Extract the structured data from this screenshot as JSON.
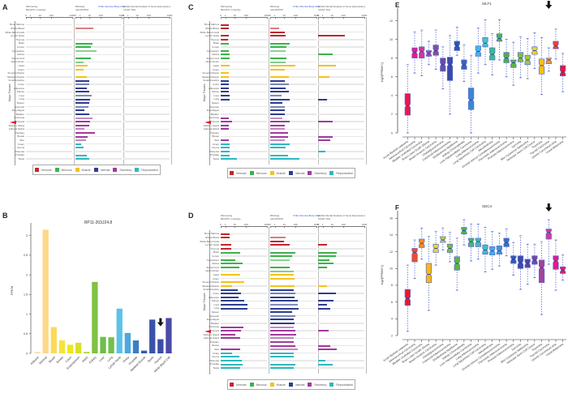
{
  "panels": {
    "A": {
      "letter": "A"
    },
    "B": {
      "letter": "B"
    },
    "C": {
      "letter": "C"
    },
    "D": {
      "letter": "D"
    },
    "E": {
      "letter": "E"
    },
    "F": {
      "letter": "F"
    }
  },
  "tissue_panels": {
    "y_label": "Major Tissues",
    "col_headers": [
      {
        "line1": "Microarray",
        "line2": "BioGPS  • Intensity",
        "blue": ""
      },
      {
        "line1": "RNAseq",
        "line2": "rpkm/FPKM",
        "blue": "GTEx  Illumina Body Map"
      },
      {
        "line1": "SAGE  (Serial Analysis of Gene Expression)",
        "line2": "CGAP  TAG",
        "blue": ""
      }
    ],
    "ticks_col1": [
      "0",
      "1",
      "10",
      "100",
      "1000"
    ],
    "ticks_col2": [
      "0",
      "1",
      "10",
      "100",
      "1000"
    ],
    "ticks_col3": [
      "0",
      "1",
      "10",
      "100",
      "1000"
    ],
    "marked_tissue": "Thyroid",
    "tissues": [
      "Bone Marrow",
      "Whole Blood",
      "White Blood Cells",
      "Lymph Node",
      "Thymus",
      "Brain",
      "Cortex",
      "Cerebellum",
      "Retina",
      "Spinal Cord",
      "Heart Atrium",
      "Heart",
      "Artery",
      "Smooth Muscle",
      "Skeletal Muscle",
      "Small Intestine",
      "Colon",
      "Adipocyte",
      "Kidney",
      "Liver",
      "Lung",
      "Spleen",
      "Stomach",
      "Esophagus",
      "Bladder",
      "Pancreas",
      "Thyroid",
      "Salivary Gland",
      "Adrenal Gland",
      "Pituitary",
      "Breast",
      "Skin",
      "Ovary",
      "Uterus",
      "Placenta",
      "Prostate",
      "Testis"
    ],
    "groups": [
      0,
      0,
      0,
      0,
      0,
      1,
      1,
      1,
      1,
      1,
      1,
      2,
      2,
      2,
      2,
      3,
      3,
      3,
      3,
      3,
      3,
      3,
      3,
      3,
      3,
      4,
      4,
      4,
      4,
      4,
      4,
      4,
      5,
      5,
      5,
      5,
      5
    ],
    "legend": [
      {
        "label": "Immune",
        "color": "#c0272d"
      },
      {
        "label": "Nervous",
        "color": "#3bb34a"
      },
      {
        "label": "Muscle",
        "color": "#f5c21b"
      },
      {
        "label": "Internal",
        "color": "#2e3d8f"
      },
      {
        "label": "Secretory",
        "color": "#a03a9c"
      },
      {
        "label": "Reproductive",
        "color": "#2fb8bf"
      }
    ],
    "A_values": {
      "col1": [
        0,
        0,
        0,
        0,
        0,
        0,
        0,
        0,
        0,
        0,
        0,
        0,
        0,
        0,
        0,
        0,
        0,
        0,
        0,
        0,
        0,
        0,
        0,
        0,
        0,
        0,
        0,
        0,
        0,
        0,
        0,
        0,
        0,
        0,
        0,
        0,
        0
      ],
      "col2": [
        0,
        0.38,
        0,
        0,
        0,
        0.37,
        0.33,
        0.45,
        0,
        0.33,
        0.17,
        0.27,
        0.17,
        0,
        0.25,
        0.3,
        0.3,
        0.25,
        0.3,
        0.35,
        0.32,
        0.3,
        0.28,
        0.2,
        0.3,
        0.37,
        0.32,
        0.3,
        0.2,
        0.42,
        0.27,
        0.22,
        0.13,
        0.17,
        0,
        0.25,
        0.3
      ],
      "col3": [
        0,
        0,
        0,
        0,
        0,
        0,
        0,
        0,
        0,
        0,
        0,
        0,
        0,
        0,
        0,
        0,
        0,
        0,
        0,
        0,
        0,
        0,
        0,
        0,
        0,
        0,
        0,
        0,
        0,
        0,
        0,
        0,
        0,
        0,
        0,
        0,
        0
      ]
    },
    "C_values": {
      "col1": [
        0.17,
        0.17,
        0,
        0.17,
        0.15,
        0.17,
        0,
        0.17,
        0.2,
        0.19,
        0,
        0.2,
        0,
        0.18,
        0.18,
        0.17,
        0.17,
        0.17,
        0.17,
        0.2,
        0.19,
        0,
        0,
        0,
        0,
        0.17,
        0.25,
        0.17,
        0.17,
        0,
        0,
        0.17,
        0.19,
        0.19,
        0.19,
        0.19,
        0.35
      ],
      "col2": [
        0,
        0.19,
        0.31,
        0.34,
        0,
        0.42,
        0.35,
        0.34,
        0,
        0.35,
        0.34,
        0.55,
        0.32,
        0,
        0.4,
        0.31,
        0.4,
        0.33,
        0.4,
        0.25,
        0.42,
        0.26,
        0.32,
        0.32,
        0.32,
        0.27,
        0.42,
        0.32,
        0.32,
        0.39,
        0.39,
        0.31,
        0.42,
        0.33,
        0,
        0.39,
        0.63
      ],
      "col3": [
        0,
        0,
        0,
        0.58,
        0,
        0,
        0,
        0,
        0.31,
        0,
        0,
        0.38,
        0,
        0,
        0.24,
        0,
        0,
        0,
        0,
        0,
        0.19,
        0,
        0,
        0,
        0,
        0,
        0.32,
        0,
        0,
        0,
        0.32,
        0.26,
        0,
        0,
        0.16,
        0,
        0
      ]
    },
    "D_values": {
      "col1": [
        0.2,
        0.2,
        0,
        0.22,
        0.22,
        0.42,
        0,
        0.31,
        0.47,
        0.41,
        0,
        0.42,
        0,
        0.5,
        0.25,
        0.37,
        0.44,
        0.39,
        0.5,
        0.58,
        0.58,
        0,
        0,
        0,
        0,
        0.49,
        0.44,
        0.32,
        0.42,
        0,
        0,
        0.42,
        0.25,
        0.4,
        0.46,
        0.48,
        0.42
      ],
      "col2": [
        0,
        0.34,
        0.3,
        0.42,
        0,
        0.54,
        0.47,
        0.42,
        0,
        0.42,
        0.5,
        0.5,
        0.53,
        0,
        0.52,
        0.5,
        0.55,
        0.53,
        0.59,
        0.59,
        0.61,
        0.48,
        0.55,
        0.5,
        0.53,
        0.5,
        0.54,
        0.57,
        0.5,
        0.5,
        0.55,
        0.59,
        0.5,
        0.5,
        0,
        0.55,
        0.5
      ],
      "col3": [
        0,
        0,
        0,
        0.19,
        0,
        0.4,
        0.39,
        0.25,
        0.34,
        0.19,
        0,
        0,
        0,
        0,
        0.19,
        0,
        0.38,
        0,
        0.33,
        0.19,
        0.27,
        0,
        0,
        0,
        0,
        0,
        0.23,
        0,
        0,
        0,
        0.26,
        0.4,
        0,
        0,
        0.16,
        0.31,
        0
      ]
    }
  },
  "chart_data": [
    {
      "panel": "B",
      "type": "bar",
      "title": "RP11-203J24.8",
      "xlabel": "",
      "ylabel": "FPKM",
      "ylim": [
        0,
        3.2
      ],
      "yticks": [
        "0",
        "0.5",
        "1",
        "1.5",
        "2",
        "2.5",
        "3"
      ],
      "categories": [
        "Adipose",
        "Adrenal",
        "Bowel",
        "Breast",
        "Colon",
        "Endometrium",
        "Heart",
        "Kidney",
        "Liver",
        "Lung",
        "Lymph Node",
        "Ovary",
        "Prostate",
        "Skeletal Muscle",
        "Testis",
        "Thyroid",
        "White Blood Cell"
      ],
      "values": [
        0.04,
        3.15,
        0.67,
        0.33,
        0.22,
        0.27,
        0.04,
        1.82,
        0.42,
        0.41,
        1.14,
        0.52,
        0.33,
        0.07,
        0.86,
        0.36,
        0.9
      ],
      "colors": [
        "#fde0b0",
        "#fdd888",
        "#fbd95a",
        "#f7e23a",
        "#efe71a",
        "#dbe02a",
        "#b8d83a",
        "#7fc242",
        "#6ebe4a",
        "#72c04a",
        "#5bc3e8",
        "#4aa7e0",
        "#3d7ec4",
        "#3a57b0",
        "#3953a8",
        "#3a4ea6",
        "#4a4aa8"
      ],
      "marker": {
        "category": "Thyroid",
        "symbol": "down-arrow"
      }
    },
    {
      "panel": "E",
      "type": "box",
      "title": "MLF1",
      "ylabel": "log2(FPKM+1)",
      "ylim": [
        0,
        13
      ],
      "yticks": [
        "0",
        "2",
        "4",
        "6",
        "8",
        "10",
        "12"
      ],
      "categories": [
        "Acute Myeloid Leukemia",
        "Adrenocortical Carcinoma",
        "Bladder Urothelial Carcinoma",
        "Brain Lower Grade Glioma",
        "Breast Invasive Carcinoma",
        "Cholangiocarcinoma",
        "Colorectal Adenocarcinoma",
        "Glioblastoma Multiforme",
        "Kidney Chromophobe",
        "Liver Hepatocellular Carcinoma",
        "Lung Adenocarcinoma",
        "Lung Squamous Cell Carcinoma",
        "Mesothelioma",
        "Ovarian Serous Cystadenocarcinoma",
        "Pancreatic Adenocarcinoma",
        "Prostate Adenocarcinoma",
        "Sarcoma",
        "Skin Cutaneous Melanoma",
        "Testicular Germ Cell Cancer",
        "Thymoma",
        "Thyroid Carcinoma",
        "Uterine Carcinosarcoma",
        "Uveal Melanoma"
      ],
      "boxes": [
        {
          "whisker_low": 0,
          "q1": 1.9,
          "median": 2.9,
          "q3": 4.2,
          "whisker_high": 7.3,
          "color": "#e8184e"
        },
        {
          "whisker_low": 6.4,
          "q1": 8.0,
          "median": 8.6,
          "q3": 9.1,
          "whisker_high": 10.8,
          "color": "#e8188c"
        },
        {
          "whisker_low": 6.1,
          "q1": 8.0,
          "median": 8.7,
          "q3": 9.2,
          "whisker_high": 11.0,
          "color": "#c83a9c"
        },
        {
          "whisker_low": 7.3,
          "q1": 8.2,
          "median": 8.5,
          "q3": 8.8,
          "whisker_high": 9.8,
          "color": "#a9489c"
        },
        {
          "whisker_low": 6.8,
          "q1": 8.3,
          "median": 8.8,
          "q3": 9.4,
          "whisker_high": 11.0,
          "color": "#8a4ca0"
        },
        {
          "whisker_low": 4.7,
          "q1": 6.6,
          "median": 7.3,
          "q3": 8.0,
          "whisker_high": 9.2,
          "color": "#6a4aa6"
        },
        {
          "whisker_low": 2.0,
          "q1": 5.6,
          "median": 7.3,
          "q3": 8.1,
          "whisker_high": 10.4,
          "color": "#3c4aa8"
        },
        {
          "whisker_low": 8.3,
          "q1": 8.8,
          "median": 9.3,
          "q3": 9.8,
          "whisker_high": 11.3,
          "color": "#2e56b0"
        },
        {
          "whisker_low": 5.5,
          "q1": 6.8,
          "median": 7.3,
          "q3": 7.8,
          "whisker_high": 9.4,
          "color": "#3464b8"
        },
        {
          "whisker_low": 0,
          "q1": 2.5,
          "median": 3.5,
          "q3": 4.8,
          "whisker_high": 8.3,
          "color": "#3a88d0"
        },
        {
          "whisker_low": 6.4,
          "q1": 8.2,
          "median": 8.7,
          "q3": 9.3,
          "whisker_high": 11.2,
          "color": "#40b6e8"
        },
        {
          "whisker_low": 7.3,
          "q1": 9.2,
          "median": 9.6,
          "q3": 10.2,
          "whisker_high": 12.1,
          "color": "#44c4c8"
        },
        {
          "whisker_low": 6.2,
          "q1": 7.8,
          "median": 8.4,
          "q3": 9.1,
          "whisker_high": 10.6,
          "color": "#3cbc8c"
        },
        {
          "whisker_low": 7.8,
          "q1": 9.8,
          "median": 10.1,
          "q3": 10.6,
          "whisker_high": 12.1,
          "color": "#4cb44c"
        },
        {
          "whisker_low": 6.0,
          "q1": 7.5,
          "median": 8.0,
          "q3": 8.6,
          "whisker_high": 10.0,
          "color": "#4cb044"
        },
        {
          "whisker_low": 5.1,
          "q1": 7.0,
          "median": 7.5,
          "q3": 7.8,
          "whisker_high": 9.7,
          "color": "#5cb444"
        },
        {
          "whisker_low": 5.9,
          "q1": 7.6,
          "median": 8.0,
          "q3": 8.6,
          "whisker_high": 10.3,
          "color": "#80c040"
        },
        {
          "whisker_low": 5.8,
          "q1": 7.3,
          "median": 7.8,
          "q3": 8.3,
          "whisker_high": 10.1,
          "color": "#a6c83c"
        },
        {
          "whisker_low": 6.9,
          "q1": 8.4,
          "median": 8.8,
          "q3": 9.2,
          "whisker_high": 10.7,
          "color": "#e6d828"
        },
        {
          "whisker_low": 4.1,
          "q1": 6.3,
          "median": 7.2,
          "q3": 7.9,
          "whisker_high": 10.2,
          "color": "#f8c018"
        },
        {
          "whisker_low": 6.6,
          "q1": 7.4,
          "median": 7.8,
          "q3": 8.0,
          "whisker_high": 9.1,
          "color": "#f89828"
        },
        {
          "whisker_low": 7.9,
          "q1": 9.0,
          "median": 9.3,
          "q3": 9.8,
          "whisker_high": 11.1,
          "color": "#f04030"
        },
        {
          "whisker_low": 4.4,
          "q1": 6.1,
          "median": 6.5,
          "q3": 7.2,
          "whisker_high": 8.5,
          "color": "#e8182c"
        }
      ],
      "marker": {
        "category": "Thyroid Carcinoma",
        "symbol": "down-arrow"
      }
    },
    {
      "panel": "F",
      "type": "box",
      "title": "SDC4",
      "ylabel": "log2(FPKM+1)",
      "ylim": [
        2,
        16.5
      ],
      "yticks": [
        "2",
        "4",
        "6",
        "8",
        "10",
        "12",
        "14",
        "16"
      ],
      "categories": [
        "Acute Myeloid Leukemia",
        "Adrenocortical Carcinoma",
        "Bladder Urothelial Carcinoma",
        "Brain Lower Grade Glioma",
        "Breast Invasive Carcinoma",
        "Cholangiocarcinoma",
        "Colorectal Adenocarcinoma",
        "Glioblastoma Multiforme",
        "Kidney Chromophobe",
        "Liver Hepatocellular Carcinoma",
        "Lung Adenocarcinoma",
        "Lung Squamous Cell Carcinoma",
        "Mesothelioma",
        "Ovarian Serous Cystadenocarcinoma",
        "Pancreatic Adenocarcinoma",
        "Prostate Adenocarcinoma",
        "Sarcoma",
        "Skin Cutaneous Melanoma",
        "Testicular Germ Cell Cancer",
        "Thymoma",
        "Thyroid Carcinoma",
        "Uterine Carcinosarcoma",
        "Uveal Melanoma"
      ],
      "boxes": [
        {
          "whisker_low": 2.5,
          "q1": 5.6,
          "median": 6.4,
          "q3": 7.5,
          "whisker_high": 10.4,
          "color": "#e8182c"
        },
        {
          "whisker_low": 8.8,
          "q1": 10.8,
          "median": 11.9,
          "q3": 12.4,
          "whisker_high": 13.4,
          "color": "#f04a28"
        },
        {
          "whisker_low": 11.1,
          "q1": 12.5,
          "median": 13.0,
          "q3": 13.5,
          "whisker_high": 14.8,
          "color": "#f88a28"
        },
        {
          "whisker_low": 5.0,
          "q1": 8.3,
          "median": 9.3,
          "q3": 10.6,
          "whisker_high": 13.8,
          "color": "#f8b818"
        },
        {
          "whisker_low": 10.4,
          "q1": 11.9,
          "median": 12.4,
          "q3": 12.9,
          "whisker_high": 14.4,
          "color": "#e8d828"
        },
        {
          "whisker_low": 12.2,
          "q1": 13.1,
          "median": 13.4,
          "q3": 13.8,
          "whisker_high": 14.8,
          "color": "#b8cc38"
        },
        {
          "whisker_low": 10.8,
          "q1": 11.9,
          "median": 12.4,
          "q3": 12.9,
          "whisker_high": 14.3,
          "color": "#7cbc3c"
        },
        {
          "whisker_low": 7.4,
          "q1": 9.8,
          "median": 10.6,
          "q3": 11.4,
          "whisker_high": 13.6,
          "color": "#5cb444"
        },
        {
          "whisker_low": 12.8,
          "q1": 14.1,
          "median": 14.5,
          "q3": 14.9,
          "whisker_high": 15.8,
          "color": "#4cb44c"
        },
        {
          "whisker_low": 10.9,
          "q1": 12.6,
          "median": 13.2,
          "q3": 13.6,
          "whisker_high": 15.3,
          "color": "#4cb46c"
        },
        {
          "whisker_low": 11.1,
          "q1": 12.6,
          "median": 13.2,
          "q3": 13.6,
          "whisker_high": 15.3,
          "color": "#44bca8"
        },
        {
          "whisker_low": 9.6,
          "q1": 11.7,
          "median": 12.2,
          "q3": 12.8,
          "whisker_high": 14.9,
          "color": "#44bcc8"
        },
        {
          "whisker_low": 9.9,
          "q1": 11.6,
          "median": 12.1,
          "q3": 12.6,
          "whisker_high": 14.4,
          "color": "#40b0e0"
        },
        {
          "whisker_low": 10.3,
          "q1": 11.7,
          "median": 12.1,
          "q3": 12.7,
          "whisker_high": 14.2,
          "color": "#3c98d8"
        },
        {
          "whisker_low": 11.5,
          "q1": 12.6,
          "median": 13.1,
          "q3": 13.6,
          "whisker_high": 14.7,
          "color": "#3470c0"
        },
        {
          "whisker_low": 9.2,
          "q1": 10.6,
          "median": 11.1,
          "q3": 11.5,
          "whisker_high": 13.1,
          "color": "#3458b0"
        },
        {
          "whisker_low": 7.5,
          "q1": 10.0,
          "median": 10.7,
          "q3": 11.5,
          "whisker_high": 13.9,
          "color": "#3a4aa8"
        },
        {
          "whisker_low": 8.1,
          "q1": 10.1,
          "median": 10.6,
          "q3": 11.1,
          "whisker_high": 12.9,
          "color": "#4a48a4"
        },
        {
          "whisker_low": 8.9,
          "q1": 10.5,
          "median": 11.0,
          "q3": 11.5,
          "whisker_high": 12.9,
          "color": "#7448a0"
        },
        {
          "whisker_low": 4.5,
          "q1": 8.3,
          "median": 10.1,
          "q3": 11.0,
          "whisker_high": 13.2,
          "color": "#a0449c"
        },
        {
          "whisker_low": 10.5,
          "q1": 13.5,
          "median": 14.3,
          "q3": 14.7,
          "whisker_high": 15.8,
          "color": "#d03c9c"
        },
        {
          "whisker_low": 7.4,
          "q1": 9.9,
          "median": 10.9,
          "q3": 11.5,
          "whisker_high": 13.4,
          "color": "#e8188c"
        },
        {
          "whisker_low": 8.6,
          "q1": 9.4,
          "median": 9.8,
          "q3": 10.2,
          "whisker_high": 11.6,
          "color": "#e8185c"
        }
      ],
      "marker": {
        "category": "Thyroid Carcinoma",
        "symbol": "down-arrow"
      }
    }
  ]
}
